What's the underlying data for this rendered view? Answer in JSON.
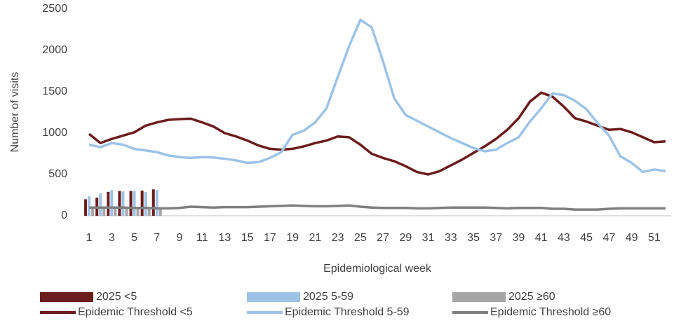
{
  "chart_data": {
    "type": "combo",
    "x_label": "Epidemiological week",
    "y_label": "Number of visits",
    "categories": [
      "1",
      null,
      "3",
      null,
      "5",
      null,
      "7",
      null,
      "9",
      null,
      "11",
      null,
      "13",
      null,
      "15",
      null,
      "17",
      null,
      "19",
      null,
      "21",
      null,
      "23",
      null,
      "25",
      null,
      "27",
      null,
      "29",
      null,
      "31",
      null,
      "33",
      null,
      "35",
      null,
      "37",
      null,
      "39",
      null,
      "41",
      null,
      "43",
      null,
      "45",
      null,
      "47",
      null,
      "49",
      null,
      "51",
      null
    ],
    "ylim": [
      0,
      2500
    ],
    "yticks": [
      0,
      500,
      1000,
      1500,
      2000,
      2500
    ],
    "legend": "bottom",
    "series": [
      {
        "name": "2025 <5",
        "type": "bar",
        "color": "#6b1c1c",
        "values": [
          200,
          220,
          290,
          300,
          300,
          305,
          320,
          null,
          null,
          null,
          null,
          null,
          null,
          null,
          null,
          null,
          null,
          null,
          null,
          null,
          null,
          null,
          null,
          null,
          null,
          null,
          null,
          null,
          null,
          null,
          null,
          null,
          null,
          null,
          null,
          null,
          null,
          null,
          null,
          null,
          null,
          null,
          null,
          null,
          null,
          null,
          null,
          null,
          null,
          null,
          null,
          null
        ]
      },
      {
        "name": "2025 5-59",
        "type": "bar",
        "color": "#9dc3e6",
        "values": [
          235,
          270,
          310,
          295,
          300,
          290,
          310,
          null,
          null,
          null,
          null,
          null,
          null,
          null,
          null,
          null,
          null,
          null,
          null,
          null,
          null,
          null,
          null,
          null,
          null,
          null,
          null,
          null,
          null,
          null,
          null,
          null,
          null,
          null,
          null,
          null,
          null,
          null,
          null,
          null,
          null,
          null,
          null,
          null,
          null,
          null,
          null,
          null,
          null,
          null,
          null,
          null
        ]
      },
      {
        "name": "2025 ≥60",
        "type": "bar",
        "color": "#a6a6a6",
        "values": [
          110,
          110,
          100,
          100,
          95,
          95,
          90,
          null,
          null,
          null,
          null,
          null,
          null,
          null,
          null,
          null,
          null,
          null,
          null,
          null,
          null,
          null,
          null,
          null,
          null,
          null,
          null,
          null,
          null,
          null,
          null,
          null,
          null,
          null,
          null,
          null,
          null,
          null,
          null,
          null,
          null,
          null,
          null,
          null,
          null,
          null,
          null,
          null,
          null,
          null,
          null,
          null
        ]
      },
      {
        "name": "Epidemic Threshold <5",
        "type": "line",
        "color": "#6b1c1c",
        "values": [
          990,
          880,
          930,
          970,
          1010,
          1090,
          1130,
          1160,
          1170,
          1175,
          1130,
          1080,
          1000,
          960,
          910,
          850,
          810,
          800,
          810,
          840,
          880,
          910,
          960,
          950,
          860,
          750,
          700,
          660,
          600,
          530,
          500,
          540,
          610,
          680,
          760,
          840,
          930,
          1040,
          1180,
          1380,
          1490,
          1440,
          1320,
          1180,
          1140,
          1090,
          1040,
          1050,
          1010,
          950,
          890,
          900
        ]
      },
      {
        "name": "Epidemic Threshold 5-59",
        "type": "line",
        "color": "#9dc3e6",
        "values": [
          860,
          830,
          880,
          860,
          810,
          790,
          770,
          730,
          710,
          700,
          710,
          705,
          690,
          670,
          640,
          650,
          700,
          770,
          980,
          1030,
          1130,
          1300,
          1680,
          2050,
          2370,
          2280,
          1870,
          1420,
          1220,
          1150,
          1080,
          1010,
          940,
          880,
          820,
          780,
          800,
          880,
          950,
          1140,
          1300,
          1480,
          1460,
          1390,
          1290,
          1120,
          970,
          720,
          640,
          530,
          560,
          540
        ]
      },
      {
        "name": "Epidemic Threshold ≥60",
        "type": "line",
        "color": "#7f7f7f",
        "values": [
          100,
          100,
          100,
          100,
          95,
          95,
          90,
          90,
          95,
          110,
          105,
          100,
          105,
          105,
          105,
          110,
          115,
          120,
          125,
          120,
          115,
          115,
          120,
          125,
          110,
          100,
          95,
          95,
          95,
          90,
          90,
          95,
          100,
          100,
          100,
          100,
          95,
          90,
          95,
          95,
          95,
          85,
          85,
          75,
          75,
          75,
          85,
          90,
          90,
          90,
          90,
          90
        ]
      }
    ]
  }
}
